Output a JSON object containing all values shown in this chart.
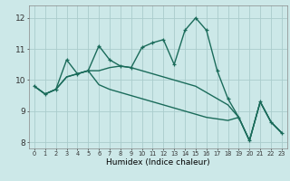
{
  "title": "",
  "xlabel": "Humidex (Indice chaleur)",
  "background_color": "#cce8e8",
  "grid_color": "#aacccc",
  "line_color": "#1a6b5a",
  "xlim": [
    -0.5,
    23.5
  ],
  "ylim": [
    7.8,
    12.4
  ],
  "xticks": [
    0,
    1,
    2,
    3,
    4,
    5,
    6,
    7,
    8,
    9,
    10,
    11,
    12,
    13,
    14,
    15,
    16,
    17,
    18,
    19,
    20,
    21,
    22,
    23
  ],
  "yticks": [
    8,
    9,
    10,
    11,
    12
  ],
  "line1_x": [
    0,
    1,
    2,
    3,
    4,
    5,
    6,
    7,
    8,
    9,
    10,
    11,
    12,
    13,
    14,
    15,
    16,
    17,
    18,
    19,
    20,
    21,
    22,
    23
  ],
  "line1_y": [
    9.8,
    9.55,
    9.7,
    10.65,
    10.2,
    10.3,
    11.1,
    10.65,
    10.45,
    10.4,
    11.05,
    11.2,
    11.3,
    10.5,
    11.6,
    12.0,
    11.6,
    10.3,
    9.4,
    8.8,
    8.05,
    9.3,
    8.65,
    8.3
  ],
  "line2_x": [
    0,
    1,
    2,
    3,
    4,
    5,
    6,
    7,
    8,
    9,
    10,
    11,
    12,
    13,
    14,
    15,
    16,
    17,
    18,
    19,
    20,
    21,
    22,
    23
  ],
  "line2_y": [
    9.8,
    9.55,
    9.7,
    10.1,
    10.2,
    10.3,
    10.3,
    10.4,
    10.45,
    10.4,
    10.3,
    10.2,
    10.1,
    10.0,
    9.9,
    9.8,
    9.6,
    9.4,
    9.2,
    8.8,
    8.05,
    9.3,
    8.65,
    8.3
  ],
  "line3_x": [
    0,
    1,
    2,
    3,
    4,
    5,
    6,
    7,
    8,
    9,
    10,
    11,
    12,
    13,
    14,
    15,
    16,
    17,
    18,
    19,
    20,
    21,
    22,
    23
  ],
  "line3_y": [
    9.8,
    9.55,
    9.7,
    10.1,
    10.2,
    10.3,
    9.85,
    9.7,
    9.6,
    9.5,
    9.4,
    9.3,
    9.2,
    9.1,
    9.0,
    8.9,
    8.8,
    8.75,
    8.7,
    8.8,
    8.05,
    9.3,
    8.65,
    8.3
  ]
}
